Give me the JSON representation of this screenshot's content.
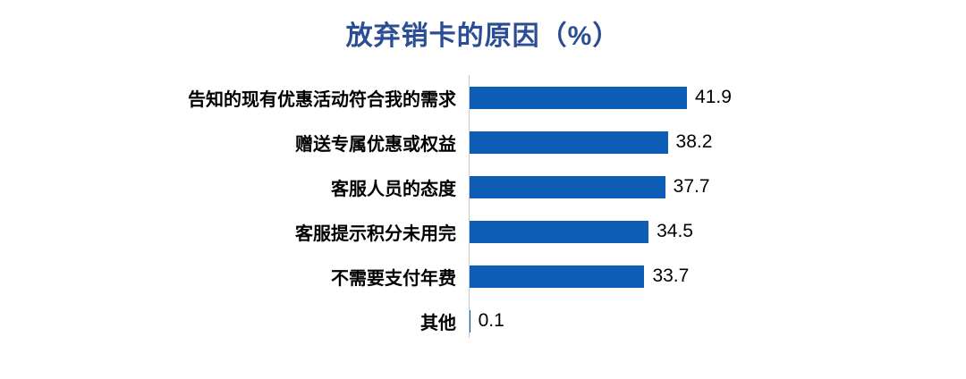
{
  "title": "放弃销卡的原因（%）",
  "colors": {
    "title_color": "#2b4d93",
    "bar_color": "#0d5cb5",
    "axis_line_color": "#c9c9c9",
    "label_color": "#000000"
  },
  "chart_data": {
    "type": "bar",
    "orientation": "horizontal",
    "title": "放弃销卡的原因（%）",
    "categories": [
      "告知的现有优惠活动符合我的需求",
      "赠送专属优惠或权益",
      "客服人员的态度",
      "客服提示积分未用完",
      "不需要支付年费",
      "其他"
    ],
    "values": [
      41.9,
      38.2,
      37.7,
      34.5,
      33.7,
      0.1
    ],
    "value_labels": [
      "41.9",
      "38.2",
      "37.7",
      "34.5",
      "33.7",
      "0.1"
    ],
    "xlabel": "",
    "ylabel": "",
    "xlim": [
      0,
      45
    ],
    "grid": false,
    "legend": false,
    "value_labels_position": "outside-end"
  }
}
